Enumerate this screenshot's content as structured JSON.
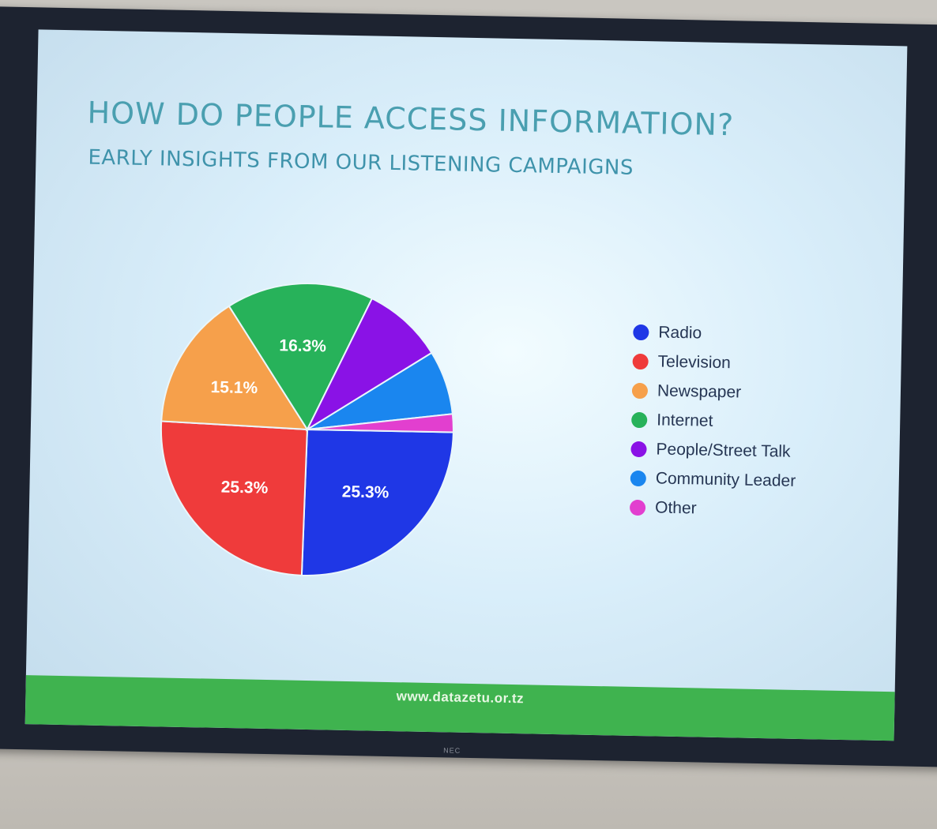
{
  "slide": {
    "title": "HOW DO PEOPLE ACCESS INFORMATION?",
    "subtitle": "EARLY INSIGHTS FROM OUR LISTENING CAMPAIGNS",
    "footer": "www.datazetu.or.tz",
    "brand": "NEC"
  },
  "chart_data": {
    "type": "pie",
    "title": "HOW DO PEOPLE ACCESS INFORMATION?",
    "subtitle": "EARLY INSIGHTS FROM OUR LISTENING CAMPAIGNS",
    "legend_position": "right",
    "categories": [
      "Radio",
      "Television",
      "Newspaper",
      "Internet",
      "People/Street Talk",
      "Community Leader",
      "Other"
    ],
    "values": [
      25.3,
      25.3,
      15.1,
      16.3,
      8.9,
      7.1,
      2.0
    ],
    "labels": [
      "25.3%",
      "25.3%",
      "15.1%",
      "16.3%",
      "",
      "",
      ""
    ],
    "colors": [
      "#1f37e6",
      "#ef3b3b",
      "#f6a04b",
      "#27b25a",
      "#8a12e6",
      "#1a86ef",
      "#e23fcf"
    ],
    "label_color": "#ffffff"
  }
}
